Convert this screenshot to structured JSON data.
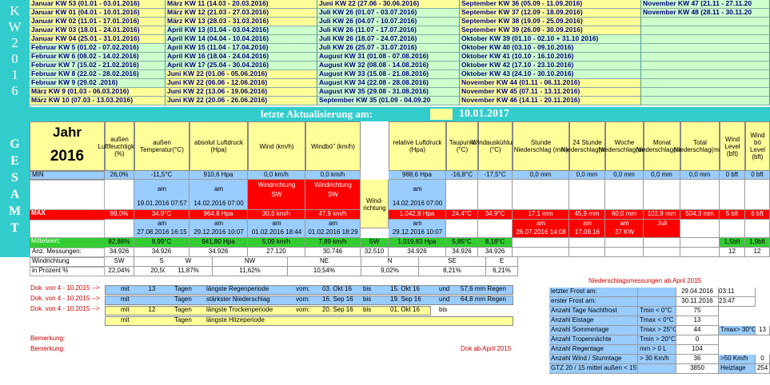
{
  "kw_label": "KW 2016",
  "kw_columns": [
    [
      "Januar KW 53 (01.01 - 03.01.2016)",
      "Januar KW 01 (04.01 - 10.01.2016)",
      "Januar KW 02 (11.01 - 17.01.2016)",
      "Januar KW 03 (18.01 - 24.01.2016)",
      "Januar KW 04 (25.01 - 31.01.2016)",
      "Februar KW 5 (01.02 - 07.02.2016)",
      "Februar KW 6 (08.02 - 14.02.2016)",
      "Februar KW 7 (15.02 - 21.02.2016)",
      "Februar KW 8 (22.02 - 28.02.2016)",
      "Februar KW 9 (29.02 .2016)",
      "März KW 9 (01.03 - 06.03.2016)",
      "März KW 10 (07.03 - 13.03.2016)"
    ],
    [
      "März KW 11 (14.03 - 20.03.2016)",
      "März KW 12 (21.03 - 27.03.2016)",
      "März KW 13 (28.03 - 31.03.2016)",
      "April KW 13 (01.04 - 03.04.2016)",
      "April KW 14 (04.04 - 10.04.2016)",
      "April KW 15 (11.04 - 17.04.2016)",
      "April KW 16 (18.04 - 24.04.2016)",
      "April KW 17 (25.04 - 30.04.2016)",
      "Juni KW 22 (01.06 - 05.06.2016)",
      "Juni KW 22 (06.06 - 12.06.2016)",
      "Juni KW 22 (13.06 - 19.06.2016)",
      "Juni KW 22 (20.06 - 26.06.2016)"
    ],
    [
      "Juni KW 22 (27.06 - 30.06.2016)",
      "Juli KW 26 (01.07 - 03.07.2016)",
      "Juli KW 26 (04.07 - 10.07.2016)",
      "Juli KW 26 (11.07 - 17.07.2016)",
      "Juli KW 26 (18.07 - 24.07.2016)",
      "Juli KW 26 (25.07 - 31.07.2016)",
      "August KW 31 (01.08 - 07.08.2016)",
      "August KW 32 (08.08 - 14.08.2016)",
      "August KW 33 (15.08 - 21.08.2016)",
      "August KW 34 (22.08 - 28.08.2016)",
      "August KW 35 (29.08 - 31.08.2016)",
      "September KW 35 (01.09 - 04.09.20"
    ],
    [
      "September KW 36 (05.09 - 11.09.2016)",
      "September KW 37 (12.09 - 18.09.2016)",
      "September KW 38 (19.09 - 25.09.2016)",
      "September KW 39 (26.09 - 30.09.2016)",
      "Oktober KW 39 (01.10 - 02.10 + 31.10 2016)",
      "Oktober KW 40 (03.10 - 09.10.2016)",
      "Oktober KW 41 (10.10 - 16.10.2016)",
      "Oktober KW 42 (17.10 - 23.10.2016)",
      "Oktober KW 43 (24.10 - 30.10.2016)",
      "November KW 44 (01.11 - 06.11.2016)",
      "November KW 45 (07.11 - 13.11.2016)",
      "November KW 46 (14.11 - 20.11.2016)"
    ],
    [
      "November KW 47 (21.11 - 27.11.20",
      "November KW 48 (28.11 - 30.11.20",
      "",
      "",
      "",
      "",
      "",
      "",
      "",
      "",
      "",
      ""
    ]
  ],
  "update_label": "letzte Aktualisierung am:",
  "update_date": "10.01.2017",
  "gesamt_label": "GESAMT",
  "year_title": "Jahr",
  "year_value": "2016",
  "headers": [
    "außen Luftfeuchtigkeit (%)",
    "außen Temperatur(°C)",
    "absolut Luftdruck (Hpa)",
    "Wind (km/h)",
    "Windbö\" (km/h)",
    "",
    "relative Luftdruck (Hpa)",
    "Taupunkt (°C)",
    "Windauskühlung (°C)",
    "Stunde Niederschlag (mm)",
    "24 Stunde Niederschlag(mm)",
    "Woche Niederschlag(mm)",
    "Monat Niederschlag(mm)",
    "Total Niederschlag(mm)",
    "Wind Level (bft)",
    "Wind bö Level (bft)"
  ],
  "row_labels": {
    "min": "MIN",
    "max": "MAX",
    "mittel": "Mittelwert:",
    "anz": "Anz. Messungen:",
    "windrichtung": "Windrichtung",
    "prozent": "in Prozent %"
  },
  "min": [
    "26,0%",
    "-11,5°C",
    "910,6 Hpa",
    "0,0 km/h",
    "0,0 km/h",
    "",
    "988,6 Hpa",
    "-16,8°C",
    "-17,5°C",
    "0,0 mm",
    "0,0 mm",
    "0,0 mm",
    "0,0 mm",
    "0,0 mm",
    "0 bft",
    "0 bft"
  ],
  "min_am": [
    "",
    "am",
    "am",
    "Windrichtung",
    "Windrichtung",
    "Wind-richtung",
    "am",
    "",
    "",
    "",
    "",
    "",
    "",
    "",
    "",
    ""
  ],
  "min_am2": [
    "",
    "19.01.2016 07:57",
    "14.02.2016 07:00",
    "SW",
    "SW",
    "",
    "14.02.2016 07:00",
    "",
    "",
    "",
    "",
    "",
    "",
    "",
    "",
    ""
  ],
  "max": [
    "99,0%",
    "34,9°C",
    "964,8 Hpa",
    "30,6 km/h",
    "47,9 km/h",
    "",
    "1.042,8 Hpa",
    "24,4°C",
    "34,9°C",
    "17,1 mm",
    "45,9 mm",
    "60,0 mm",
    "102,9 mm",
    "504,3 mm",
    "5 bft",
    "6 bft"
  ],
  "max_am": [
    "",
    "am",
    "am",
    "am",
    "am",
    "",
    "am",
    "",
    "",
    "am",
    "am",
    "am",
    "Juli",
    "",
    "",
    ""
  ],
  "max_am2": [
    "",
    "27.08.2016 16:15",
    "29.12.2016 10:07",
    "01.02.2016 18:44",
    "01.02.2016 18:29",
    "",
    "29.12.2016 10:07",
    "",
    "",
    "26.07.2016 14:08",
    "17.09.16",
    "37 KW",
    "",
    "",
    "",
    ""
  ],
  "mittel": [
    "82,88%",
    "8,99°C",
    "941,80 Hpa",
    "5,09 km/h",
    "7,89 km/h",
    "SW",
    "1.019,83 Hpa",
    "5,85°C",
    "8,18°C",
    "",
    "",
    "",
    "",
    "",
    "1,5bft",
    "1,9bft"
  ],
  "anz": [
    "34.926",
    "34.926",
    "34.926",
    "27.120",
    "30.746",
    "32.510",
    "34.926",
    "34.926",
    "34.926",
    "",
    "",
    "",
    "",
    "",
    "12",
    "12"
  ],
  "wind_dirs": [
    "SW",
    "S",
    "W",
    "NW",
    "NE",
    "N",
    "SE",
    "E"
  ],
  "wind_pct": [
    "22,04%",
    "20,50%",
    "11,87%",
    "11,62%",
    "10,54%",
    "9,02%",
    "8,21%",
    "6,21%"
  ],
  "niederschlag_title": "Niederschlagsmessungen ab April 2015",
  "perioden": [
    {
      "dok": "Dok. von 4 - 10.2015 -->",
      "mit": "mit",
      "n": "13",
      "tagen": "Tagen",
      "text": "längste Regenperiode",
      "vom": "vom:",
      "von": "03. Okt 16",
      "bis": "bis",
      "bis_d": "15. Okt 16",
      "und": "und",
      "mm": "57,6 mm Regen"
    },
    {
      "dok": "Dok. von 4 - 10.2015 -->",
      "mit": "mit",
      "n": "",
      "tagen": "Tagen",
      "text": "stärkster Niederschlag",
      "vom": "vom:",
      "von": "16. Sep 16",
      "bis": "bis",
      "bis_d": "19. Sep 16",
      "und": "und",
      "mm": "64,8 mm Regen"
    },
    {
      "dok": "Dok. von 4 - 10.2015 -->",
      "mit": "mit",
      "n": "12",
      "tagen": "Tagen",
      "text": "längste Trockenperiode",
      "vom": "vom:",
      "von": "20. Sep 16",
      "bis": "bis",
      "bis_d": "01. Okt 16",
      "und": "bis",
      "mm": ""
    },
    {
      "dok": "",
      "mit": "mit",
      "n": "",
      "tagen": "Tagen",
      "text": "längste Hitzeperiode",
      "vom": "",
      "von": "",
      "bis": "",
      "bis_d": "",
      "und": "",
      "mm": ""
    }
  ],
  "bemerkung": [
    "Bemerkung:",
    "Bemerkung:"
  ],
  "dok_ab": "Dok ab April 2015",
  "stats": [
    {
      "label": "letzter Frost am:",
      "cond": "",
      "val": "29.04.2016",
      "extra": "03:11"
    },
    {
      "label": "erster Frost am:",
      "cond": "",
      "val": "30.11.2016",
      "extra": "23:47"
    },
    {
      "label": "Anzahl Tage Nachtfrost",
      "cond": "Tmin < 0°C",
      "val": "75",
      "extra": ""
    },
    {
      "label": "Anzahl Eistage",
      "cond": "Tmax < 0°C",
      "val": "13",
      "extra": ""
    },
    {
      "label": "Anzahl Sommertage",
      "cond": "Tmax > 25°C",
      "val": "44",
      "extra": "Tmax> 30°C",
      "extra2": "13"
    },
    {
      "label": "Anzahl Tropennächte",
      "cond": "Tmin > 20°C",
      "val": "0",
      "extra": ""
    },
    {
      "label": "Anzahl Regentage",
      "cond": "mm > 0 L",
      "val": "104",
      "extra": ""
    },
    {
      "label": "Anzahl Wind / Sturmtage",
      "cond": "> 30 Km/h",
      "val": "36",
      "extra": ">50 Km/h",
      "extra2": "0"
    },
    {
      "label": "GTZ 20 / 15 mittel außen < 15°C",
      "cond": "",
      "val": "3850",
      "extra": "Heiztage",
      "extra2": "254"
    }
  ]
}
